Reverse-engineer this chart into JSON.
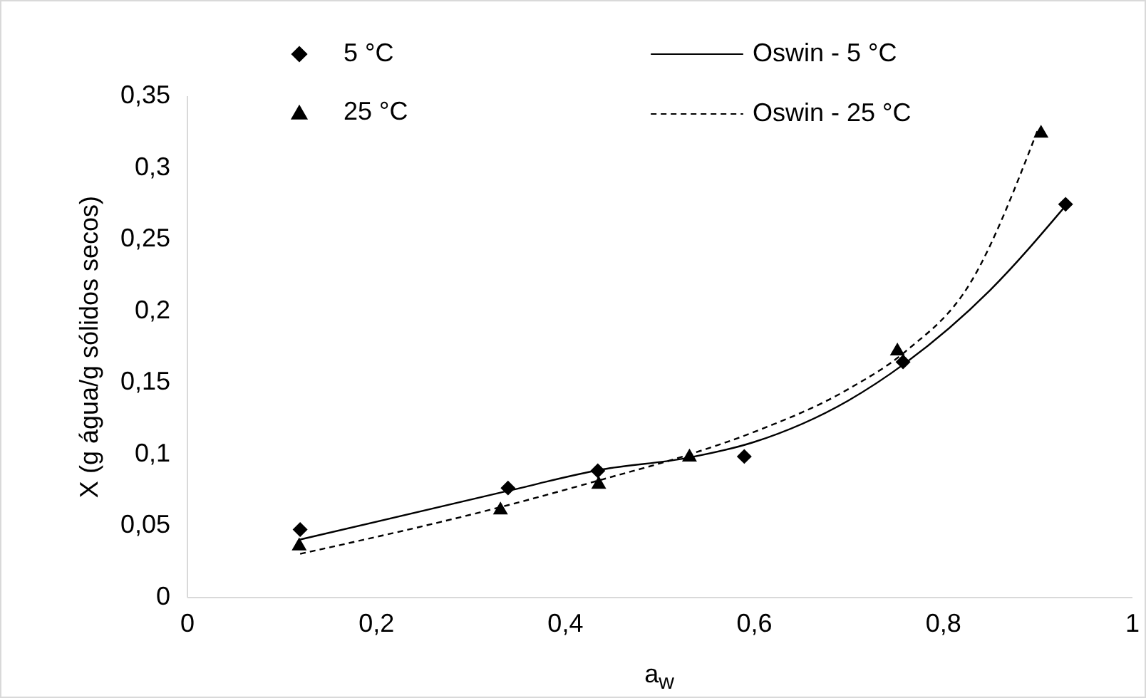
{
  "chart_data": {
    "type": "scatter",
    "xlabel": "a$_{w}$",
    "ylabel": "X (g água/g sólidos secos)",
    "xlim": [
      0,
      1
    ],
    "xticks": [
      0,
      {
        "value": 0.2,
        "label": "0,2"
      },
      {
        "value": 0.4,
        "label": "0,4"
      },
      {
        "value": 0.6,
        "label": "0,6"
      },
      {
        "value": 0.8,
        "label": "0,8"
      },
      1
    ],
    "ylim": [
      0,
      0.35
    ],
    "yticks": [
      0,
      {
        "value": 0.05,
        "label": "0,05"
      },
      {
        "value": 0.1,
        "label": "0,1"
      },
      {
        "value": 0.15,
        "label": "0,15"
      },
      {
        "value": 0.2,
        "label": "0,2"
      },
      {
        "value": 0.25,
        "label": "0,25"
      },
      {
        "value": 0.3,
        "label": "0,3"
      },
      {
        "value": 0.35,
        "label": "0,35"
      }
    ],
    "legend": "top",
    "grid": false,
    "series": [
      {
        "name": "5 °C",
        "marker": "diamond",
        "color": "#000000",
        "x": [
          0.12,
          0.34,
          0.435,
          0.59,
          0.758,
          0.93
        ],
        "values": [
          0.047,
          0.076,
          0.088,
          0.098,
          0.164,
          0.274
        ]
      },
      {
        "name": "25 °C",
        "marker": "triangle",
        "color": "#000000",
        "x": [
          0.119,
          0.332,
          0.436,
          0.532,
          0.752,
          0.904
        ],
        "values": [
          0.037,
          0.062,
          0.08,
          0.099,
          0.173,
          0.325
        ]
      },
      {
        "name": "Oswin - 5 °C",
        "type": "line",
        "line_style": "solid",
        "color": "#000000",
        "x": [
          0.12,
          0.34,
          0.44,
          0.53,
          0.6,
          0.7,
          0.76,
          0.85,
          0.93
        ],
        "values": [
          0.04,
          0.074,
          0.089,
          0.097,
          0.108,
          0.137,
          0.163,
          0.214,
          0.273
        ]
      },
      {
        "name": "Oswin - 25 °C",
        "type": "line",
        "line_style": "dashed",
        "color": "#000000",
        "x": [
          0.12,
          0.34,
          0.44,
          0.53,
          0.6,
          0.7,
          0.76,
          0.83,
          0.9
        ],
        "values": [
          0.03,
          0.064,
          0.082,
          0.099,
          0.115,
          0.145,
          0.171,
          0.22,
          0.325
        ]
      }
    ]
  }
}
